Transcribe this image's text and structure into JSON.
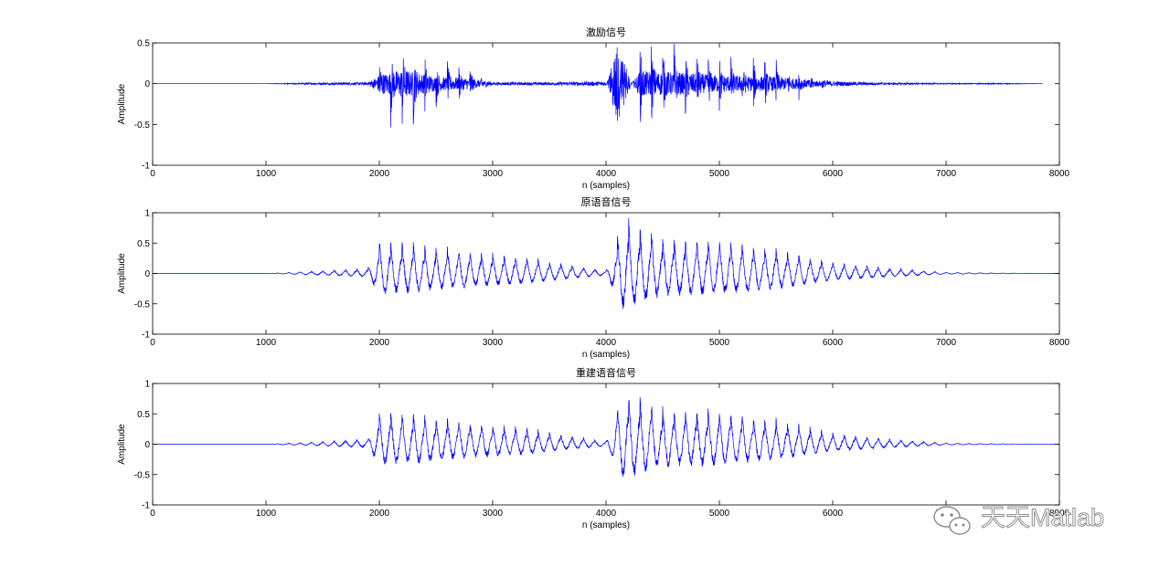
{
  "chart_data": [
    {
      "type": "line",
      "title": "激励信号",
      "xlabel": "n (samples)",
      "ylabel": "Amplitude",
      "xlim": [
        0,
        8000
      ],
      "ylim": [
        -1,
        0.5
      ],
      "xticks": [
        "0",
        "1000",
        "2000",
        "3000",
        "4000",
        "5000",
        "6000",
        "7000",
        "8000"
      ],
      "yticks": [
        "-1",
        "-0.5",
        "0",
        "0.5"
      ],
      "line_color": "#0000ff",
      "grid": false,
      "series": [
        {
          "x": [
            0,
            1000,
            1400,
            1900,
            2000,
            2200,
            2500,
            2800,
            3000,
            3500,
            4000,
            4100,
            4300,
            4600,
            5000,
            5500,
            6000,
            6500,
            7000,
            7500,
            7850
          ],
          "values": [
            0,
            0,
            0.02,
            0.03,
            0.3,
            0.5,
            0.25,
            0.2,
            0.03,
            0.03,
            0.05,
            -0.8,
            0.45,
            0.4,
            0.3,
            0.25,
            0.05,
            0.02,
            0.01,
            0.01,
            0
          ]
        }
      ]
    },
    {
      "type": "line",
      "title": "原语音信号",
      "xlabel": "n (samples)",
      "ylabel": "Amplitude",
      "xlim": [
        0,
        8000
      ],
      "ylim": [
        -1,
        1
      ],
      "xticks": [
        "0",
        "1000",
        "2000",
        "3000",
        "4000",
        "5000",
        "6000",
        "7000",
        "8000"
      ],
      "yticks": [
        "-1",
        "-0.5",
        "0",
        "0.5",
        "1"
      ],
      "line_color": "#0000ff",
      "grid": false,
      "series": [
        {
          "x": [
            0,
            1000,
            1500,
            1900,
            2000,
            2300,
            2800,
            3300,
            3700,
            4000,
            4150,
            4500,
            5000,
            5500,
            6000,
            6500,
            7000,
            8000
          ],
          "values": [
            0,
            0,
            0.05,
            0.1,
            0.6,
            0.55,
            0.4,
            0.3,
            0.15,
            0.05,
            1.0,
            0.65,
            0.6,
            0.45,
            0.2,
            0.1,
            0.02,
            0
          ]
        }
      ]
    },
    {
      "type": "line",
      "title": "重建语音信号",
      "xlabel": "n (samples)",
      "ylabel": "Amplitude",
      "xlim": [
        0,
        8000
      ],
      "ylim": [
        -1,
        1
      ],
      "xticks": [
        "0",
        "1000",
        "2000",
        "3000",
        "4000",
        "5000",
        "6000",
        "7000",
        "8000"
      ],
      "yticks": [
        "-1",
        "-0.5",
        "0",
        "0.5",
        "1"
      ],
      "line_color": "#0000ff",
      "grid": false,
      "series": [
        {
          "x": [
            0,
            1000,
            1500,
            1900,
            2000,
            2300,
            2800,
            3300,
            3700,
            4000,
            4150,
            4500,
            5000,
            5500,
            6000,
            6500,
            7000,
            8000
          ],
          "values": [
            0,
            0,
            0.05,
            0.1,
            0.6,
            0.55,
            0.4,
            0.3,
            0.15,
            0.05,
            1.0,
            0.65,
            0.6,
            0.45,
            0.2,
            0.1,
            0.02,
            0
          ]
        }
      ]
    }
  ],
  "watermark": {
    "text": "天天Matlab",
    "icon": "wechat-icon"
  }
}
